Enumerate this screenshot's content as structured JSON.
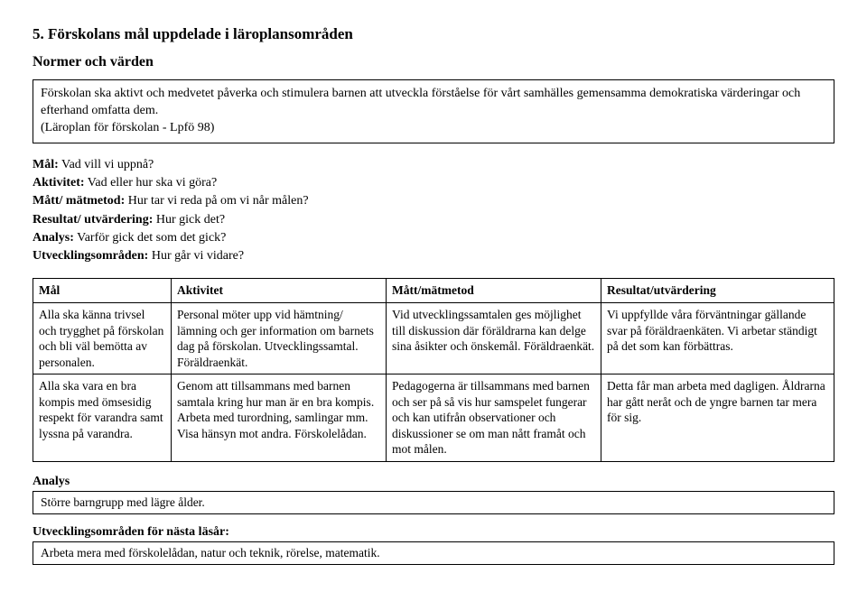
{
  "title": "5. Förskolans mål uppdelade i läroplansområden",
  "subtitle": "Normer och värden",
  "intro": "Förskolan ska aktivt och medvetet påverka och stimulera barnen att utveckla förståelse för vårt samhälles gemensamma demokratiska värderingar och efterhand omfatta dem.",
  "intro_source": "(Läroplan för förskolan - Lpfö 98)",
  "definitions": [
    {
      "term": "Mål:",
      "text": " Vad vill vi uppnå?"
    },
    {
      "term": "Aktivitet:",
      "text": " Vad eller hur ska vi göra?"
    },
    {
      "term": "Mått/ mätmetod:",
      "text": " Hur tar vi reda på om vi når målen?"
    },
    {
      "term": "Resultat/ utvärdering:",
      "text": " Hur gick det?"
    },
    {
      "term": "Analys:",
      "text": " Varför gick det som det gick?"
    },
    {
      "term": "Utvecklingsområden:",
      "text": " Hur går vi vidare?"
    }
  ],
  "table": {
    "headers": [
      "Mål",
      "Aktivitet",
      "Mått/mätmetod",
      "Resultat/utvärdering"
    ],
    "rows": [
      {
        "c1": "Alla ska känna trivsel och trygghet på förskolan och bli väl bemötta av personalen.",
        "c2": "Personal möter upp vid hämtning/ lämning och ger information om barnets dag på förskolan. Utvecklingssamtal. Föräldraenkät.",
        "c3": "Vid utvecklingssamtalen ges möjlighet till diskussion där föräldrarna kan delge sina åsikter och önskemål. Föräldraenkät.",
        "c4": "Vi uppfyllde våra förväntningar gällande svar på föräldraenkäten. Vi arbetar ständigt på det som kan förbättras."
      },
      {
        "c1": "Alla ska vara en bra kompis med ömsesidig respekt för varandra samt lyssna på varandra.",
        "c2": "Genom att tillsammans med barnen samtala kring hur man är en bra kompis. Arbeta med turordning, samlingar mm. Visa hänsyn mot andra. Förskolelådan.",
        "c3": "Pedagogerna är tillsammans med barnen och ser på så vis hur samspelet fungerar och kan utifrån observationer och diskussioner se om man nått framåt och mot målen.",
        "c4": "Detta får man arbeta med dagligen. Åldrarna har gått neråt och de yngre barnen tar mera för sig."
      }
    ]
  },
  "analysis_label": "Analys",
  "analysis_text": "Större barngrupp med lägre ålder.",
  "next_label": "Utvecklingsområden för nästa läsår:",
  "next_text": "Arbeta mera med förskolelådan, natur och teknik, rörelse, matematik."
}
